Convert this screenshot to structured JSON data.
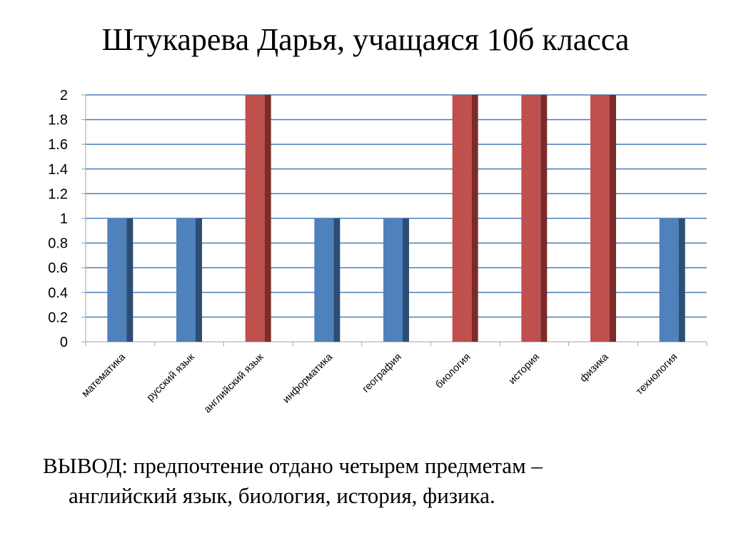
{
  "slide_title": "Штукарева Дарья, учащаяся 10б класса",
  "chart_data": {
    "type": "bar",
    "categories": [
      "математика",
      "русский язык",
      "английский язык",
      "информатика",
      "география",
      "биология",
      "история",
      "физика",
      "технология"
    ],
    "values": [
      1,
      1,
      2,
      1,
      1,
      2,
      2,
      2,
      1
    ],
    "ylim": [
      0,
      2
    ],
    "yticks": [
      "0",
      "0.2",
      "0.4",
      "0.6",
      "0.8",
      "1",
      "1.2",
      "1.4",
      "1.6",
      "1.8",
      "2"
    ],
    "grid": true,
    "legend": "none",
    "colors": {
      "low_front": "#4f81bd",
      "low_side": "#2c4d75",
      "high_front": "#c0504d",
      "high_side": "#7b2c2a",
      "grid": "#4a7ebb",
      "axis": "#a0a0a0"
    }
  },
  "conclusion": {
    "label": "ВЫВОД",
    "text_line1": ": предпочтение отдано четырем предметам –",
    "text_line2": "английский язык, биология, история, физика."
  }
}
